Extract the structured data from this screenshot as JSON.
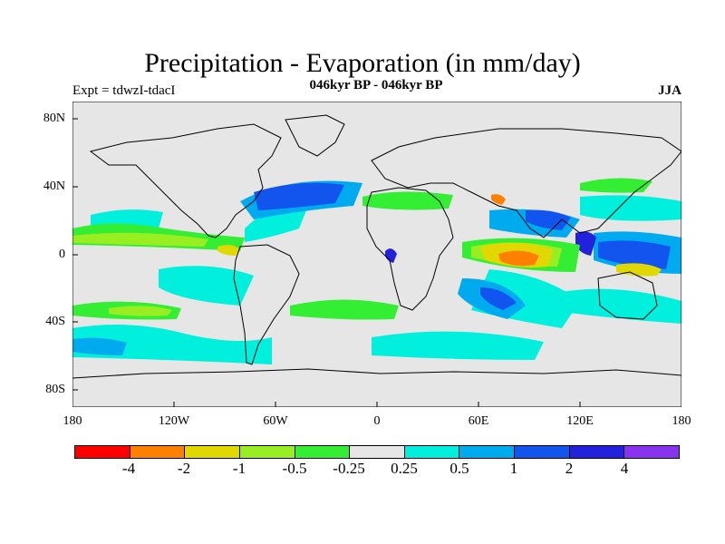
{
  "title": "Precipitation - Evaporation (in mm/day)",
  "subtitle": "046kyr BP - 046kyr BP",
  "experiment": "Expt = tdwzI-tdacI",
  "season": "JJA",
  "axes": {
    "lat_labels": [
      "80N",
      "40N",
      "0",
      "40S",
      "80S"
    ],
    "lon_labels": [
      "180",
      "120W",
      "60W",
      "0",
      "60E",
      "120E",
      "180"
    ]
  },
  "colorbar": {
    "colors": [
      "#ff0000",
      "#ff8000",
      "#e0d800",
      "#99ee22",
      "#33ee33",
      "#e6e6e6",
      "#00f0dd",
      "#00aaee",
      "#1155ee",
      "#2222dd",
      "#8833ee"
    ],
    "labels": [
      "-4",
      "-2",
      "-1",
      "-0.5",
      "-0.25",
      "0.25",
      "0.5",
      "1",
      "2",
      "4"
    ]
  },
  "chart_data": {
    "type": "heatmap",
    "title": "Precipitation - Evaporation (in mm/day)",
    "subtitle": "046kyr BP - 046kyr BP",
    "projection": "cylindrical equidistant",
    "lon_range": [
      -180,
      180
    ],
    "lat_range": [
      -90,
      90
    ],
    "contour_levels": [
      -4,
      -2,
      -1,
      -0.5,
      -0.25,
      0.25,
      0.5,
      1,
      2,
      4
    ],
    "background_color": "#e6e6e6"
  }
}
